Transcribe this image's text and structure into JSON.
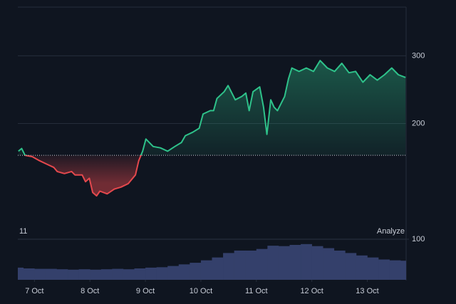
{
  "chart_data": [
    {
      "type": "line",
      "x": [
        -0.29,
        -0.23,
        -0.17,
        -0.04,
        0.09,
        0.22,
        0.35,
        0.41,
        0.54,
        0.67,
        0.73,
        0.86,
        0.92,
        0.99,
        1.05,
        1.12,
        1.18,
        1.31,
        1.44,
        1.56,
        1.69,
        1.82,
        1.88,
        1.95,
        2.01,
        2.14,
        2.27,
        2.4,
        2.53,
        2.65,
        2.72,
        2.85,
        2.97,
        3.04,
        3.17,
        3.23,
        3.29,
        3.42,
        3.49,
        3.62,
        3.74,
        3.81,
        3.87,
        3.94,
        4.06,
        4.13,
        4.19,
        4.26,
        4.32,
        4.38,
        4.51,
        4.58,
        4.64,
        4.77,
        4.9,
        5.03,
        5.15,
        5.28,
        5.41,
        5.54,
        5.67,
        5.79,
        5.92,
        6.05,
        6.18,
        6.31,
        6.44,
        6.56,
        6.69
      ],
      "series": [
        {
          "values": [
            159,
            163,
            153,
            151,
            145,
            140,
            135,
            129,
            126,
            129,
            124,
            124,
            114,
            119,
            98,
            93,
            100,
            96,
            103,
            106,
            111,
            124,
            145,
            159,
            177,
            166,
            164,
            159,
            166,
            172,
            182,
            187,
            193,
            214,
            219,
            219,
            237,
            247,
            256,
            235,
            240,
            245,
            219,
            247,
            254,
            224,
            184,
            235,
            224,
            219,
            240,
            266,
            282,
            277,
            282,
            277,
            293,
            282,
            277,
            289,
            275,
            277,
            261,
            272,
            264,
            272,
            282,
            272,
            268
          ]
        }
      ],
      "baseline": 153,
      "up_color": "#2ec28a",
      "down_color": "#e5484d",
      "xlim": [
        -0.3,
        6.7
      ],
      "ylim": [
        30,
        372
      ],
      "yticks": [
        200,
        300
      ],
      "grid": true,
      "annotations": [
        "11",
        "Analyze"
      ]
    },
    {
      "type": "bar",
      "x": [
        -0.3,
        -0.1,
        0.1,
        0.3,
        0.5,
        0.7,
        0.9,
        1.1,
        1.3,
        1.5,
        1.7,
        1.9,
        2.1,
        2.3,
        2.5,
        2.7,
        2.9,
        3.1,
        3.3,
        3.5,
        3.7,
        3.9,
        4.1,
        4.3,
        4.5,
        4.7,
        4.9,
        5.1,
        5.3,
        5.5,
        5.7,
        5.9,
        6.1,
        6.3,
        6.5,
        6.7
      ],
      "values": [
        30,
        28,
        27,
        27,
        26,
        25,
        26,
        25,
        26,
        27,
        26,
        28,
        30,
        31,
        34,
        38,
        42,
        48,
        55,
        66,
        72,
        72,
        76,
        84,
        83,
        86,
        88,
        83,
        78,
        72,
        66,
        60,
        55,
        50,
        48,
        47
      ],
      "color": "#34406b",
      "xlim": [
        -0.3,
        6.7
      ],
      "ylim": [
        0,
        100
      ],
      "yticks": [
        100
      ],
      "xticks": [
        {
          "value": 0,
          "label": "7 Oct"
        },
        {
          "value": 1,
          "label": "8 Oct"
        },
        {
          "value": 2,
          "label": "9 Oct"
        },
        {
          "value": 3,
          "label": "10 Oct"
        },
        {
          "value": 4,
          "label": "11 Oct"
        },
        {
          "value": 5,
          "label": "12 Oct"
        },
        {
          "value": 6,
          "label": "13 Oct"
        }
      ]
    }
  ]
}
